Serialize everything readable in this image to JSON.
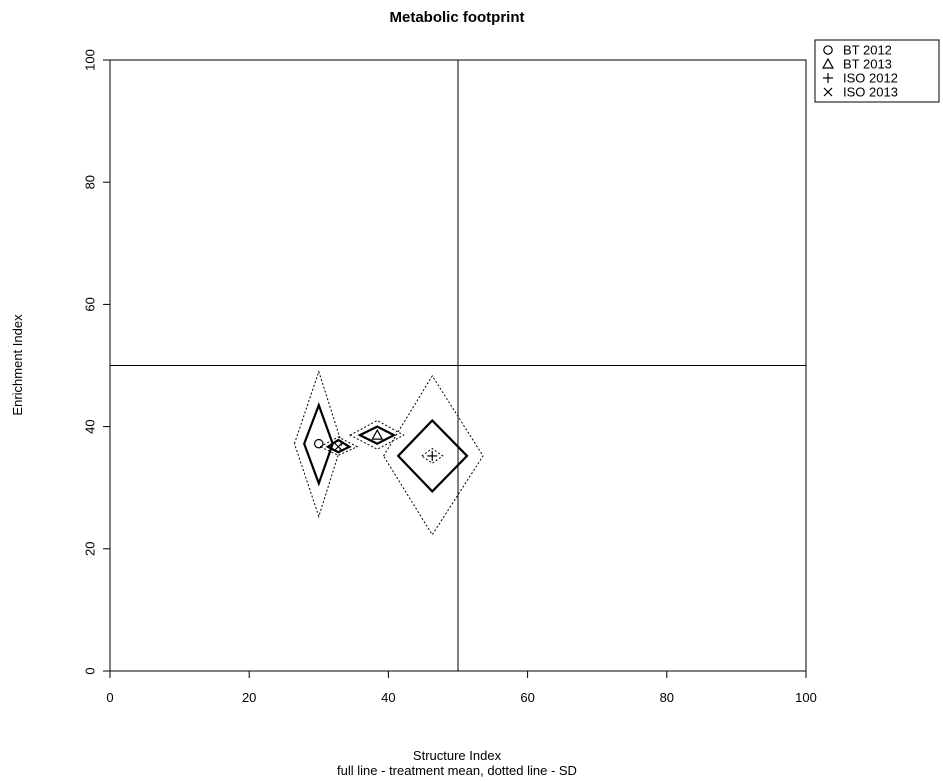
{
  "chart_data": {
    "type": "scatter",
    "title": "Metabolic footprint",
    "xlabel": "Structure Index",
    "xsublabel": "full line - treatment mean, dotted line - SD",
    "ylabel": "Enrichment Index",
    "xlim": [
      0,
      100
    ],
    "ylim": [
      0,
      100
    ],
    "xticks": [
      "0",
      "20",
      "40",
      "60",
      "80",
      "100"
    ],
    "yticks": [
      "0",
      "20",
      "40",
      "60",
      "80",
      "100"
    ],
    "reference_lines": {
      "x": 50,
      "y": 50
    },
    "legend_position": "top-right, outside plot",
    "series": [
      {
        "name": "BT 2012",
        "symbol": "circle",
        "x": 30.0,
        "y": 37.2,
        "mean_diamond": {
          "x_left": 27.9,
          "x_right": 32.0,
          "y_bottom": 30.7,
          "y_top": 43.5
        },
        "sd_diamond": {
          "x_left": 26.5,
          "x_right": 33.3,
          "y_bottom": 25.3,
          "y_top": 49.0
        }
      },
      {
        "name": "BT 2013",
        "symbol": "triangle",
        "x": 38.4,
        "y": 38.6,
        "mean_diamond": {
          "x_left": 35.9,
          "x_right": 40.8,
          "y_bottom": 37.2,
          "y_top": 40.0
        },
        "sd_diamond": {
          "x_left": 34.5,
          "x_right": 42.2,
          "y_bottom": 36.3,
          "y_top": 41.0
        }
      },
      {
        "name": "ISO 2012",
        "symbol": "plus",
        "x": 46.3,
        "y": 35.2,
        "mean_diamond": {
          "x_left": 41.4,
          "x_right": 51.3,
          "y_bottom": 29.4,
          "y_top": 41.0
        },
        "sd_diamond": {
          "x_left": 39.3,
          "x_right": 53.6,
          "y_bottom": 22.3,
          "y_top": 48.3
        }
      },
      {
        "name": "ISO 2013",
        "symbol": "cross",
        "x": 32.8,
        "y": 36.7,
        "mean_diamond": {
          "x_left": 31.3,
          "x_right": 34.4,
          "y_bottom": 35.8,
          "y_top": 37.8
        },
        "sd_diamond": {
          "x_left": 30.2,
          "x_right": 35.5,
          "y_bottom": 35.3,
          "y_top": 38.3
        }
      }
    ],
    "inner_sd_marks": [
      {
        "x_left": 44.8,
        "x_right": 47.8,
        "y_bottom": 34.0,
        "y_top": 36.4
      }
    ],
    "colors": {
      "line": "#000000",
      "background": "#ffffff"
    }
  }
}
